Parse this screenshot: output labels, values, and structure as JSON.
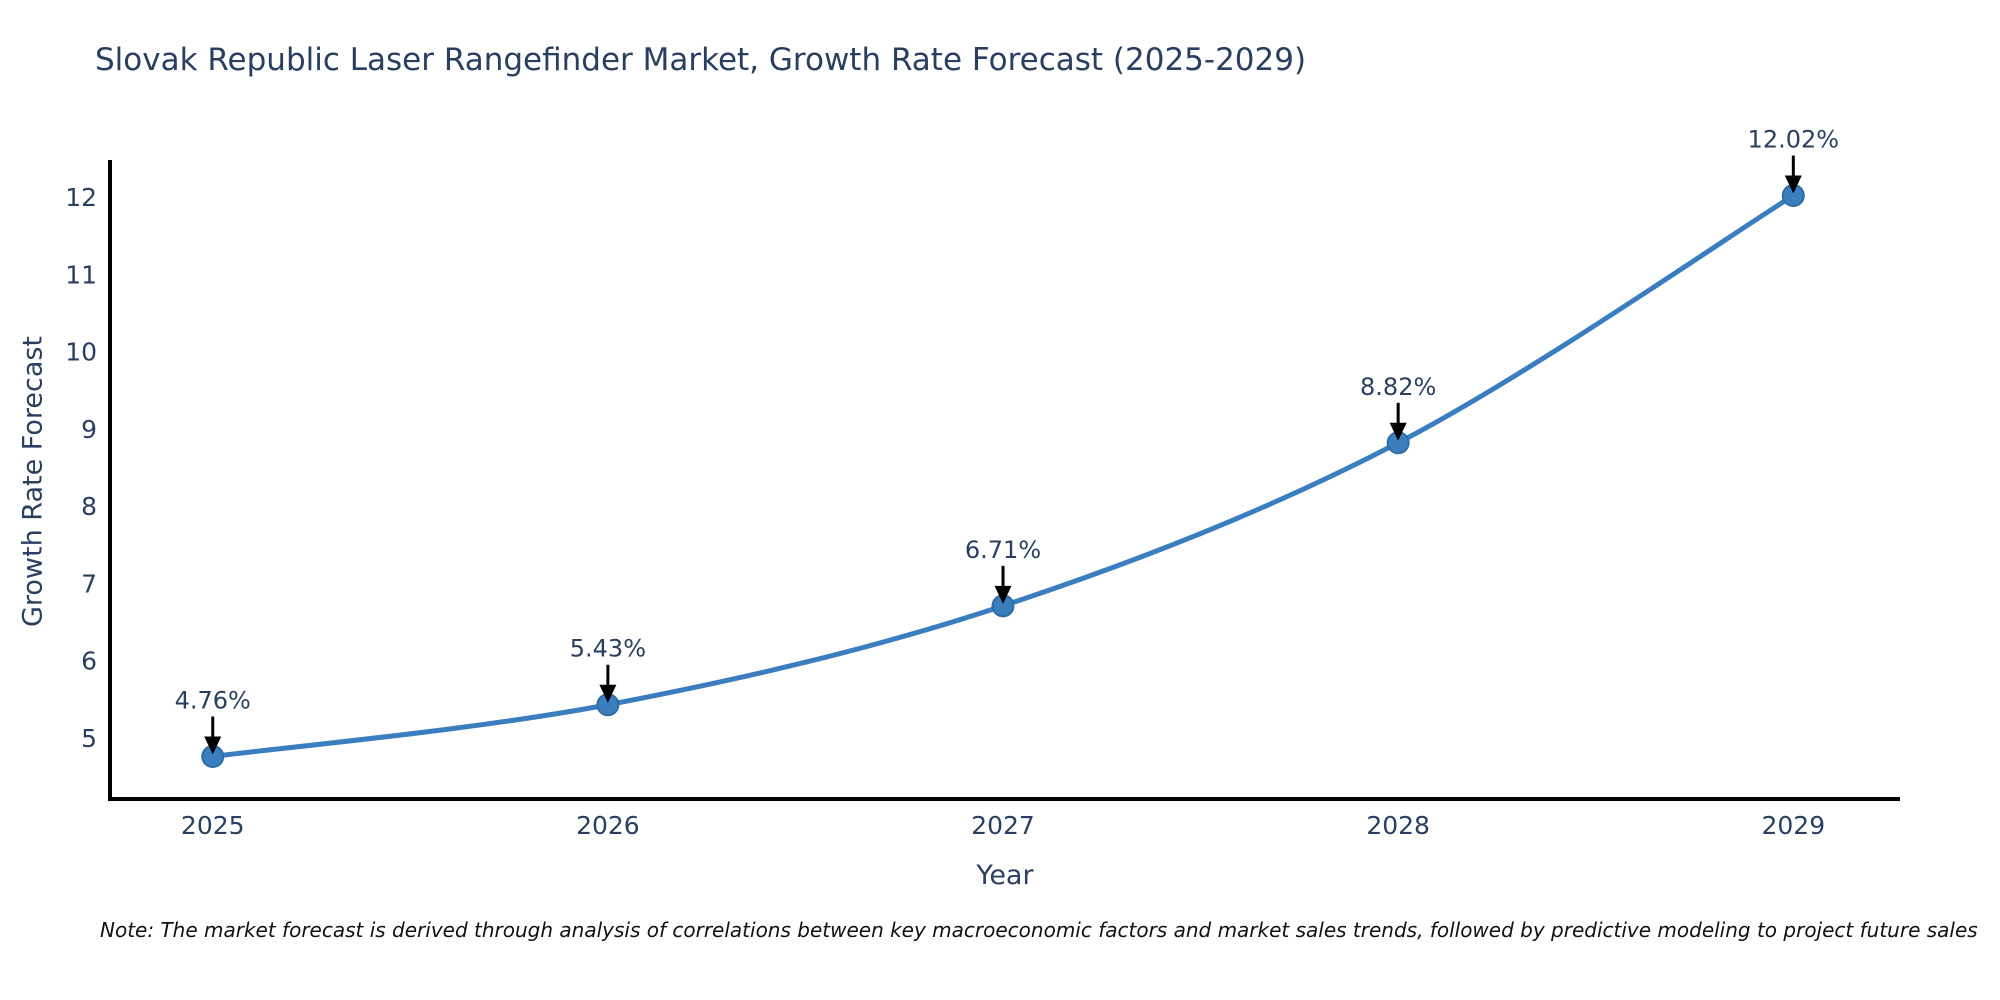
{
  "chart_data": {
    "type": "line",
    "title": "Slovak Republic Laser Rangefinder Market, Growth Rate Forecast (2025-2029)",
    "xlabel": "Year",
    "ylabel": "Growth Rate Forecast",
    "note": "Note: The market forecast is derived through analysis of correlations between key macroeconomic factors and market sales trends, followed by predictive modeling to project future sales",
    "x": [
      2025,
      2026,
      2027,
      2028,
      2029
    ],
    "values": [
      4.76,
      5.43,
      6.71,
      8.82,
      12.02
    ],
    "point_labels": [
      "4.76%",
      "5.43%",
      "6.71%",
      "8.82%",
      "12.02%"
    ],
    "xticks": [
      2025,
      2026,
      2027,
      2028,
      2029
    ],
    "yticks": [
      5,
      6,
      7,
      8,
      9,
      10,
      11,
      12
    ],
    "xlim": [
      2024.74,
      2029.27
    ],
    "ylim": [
      4.21,
      12.48
    ],
    "line_shape": "spline",
    "grid": false,
    "legend": "none",
    "colors": {
      "line": "#3a7ebf",
      "marker_fill": "#3a7ebf",
      "marker_edge": "#2e6da4",
      "axis": "#000000",
      "text": "#2a3f5f",
      "arrow": "#000000",
      "background": "#ffffff"
    }
  }
}
